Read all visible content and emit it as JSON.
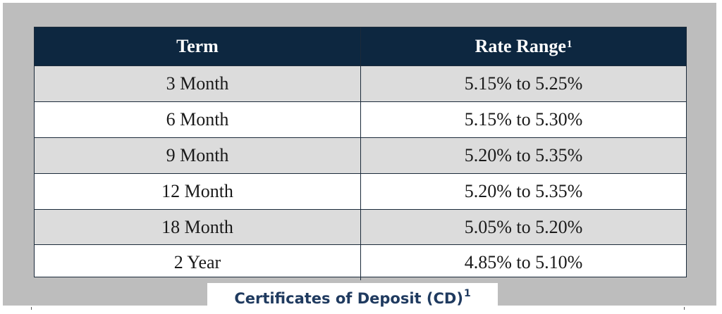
{
  "table": {
    "header": {
      "term": "Term",
      "rate": "Rate Range",
      "rate_footnote": "1"
    },
    "rows": [
      {
        "term": "3 Month",
        "rate": "5.15% to 5.25%"
      },
      {
        "term": "6 Month",
        "rate": "5.15% to 5.30%"
      },
      {
        "term": "9 Month",
        "rate": "5.20% to 5.35%"
      },
      {
        "term": "12 Month",
        "rate": "5.20% to 5.35%"
      },
      {
        "term": "18 Month",
        "rate": "5.05% to 5.20%"
      },
      {
        "term": "2 Year",
        "rate": "4.85% to 5.10%"
      }
    ]
  },
  "caption": {
    "text": "Certificates of Deposit (CD)",
    "footnote": "1"
  },
  "colors": {
    "header_bg": "#0d2740",
    "shaded_row": "#dcdcdc",
    "panel_bg": "#bdbdbd",
    "caption_text": "#1f3a5f"
  }
}
